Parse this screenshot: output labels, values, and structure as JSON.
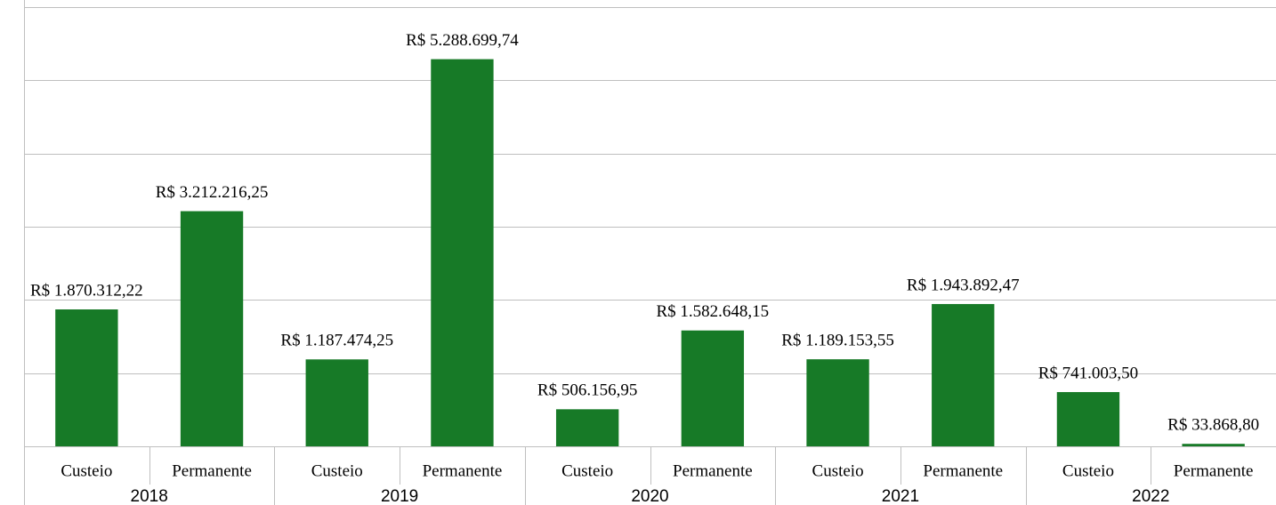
{
  "chart_data": {
    "type": "bar",
    "categories": [
      "Custeio",
      "Permanente",
      "Custeio",
      "Permanente",
      "Custeio",
      "Permanente",
      "Custeio",
      "Permanente",
      "Custeio",
      "Permanente"
    ],
    "groups": [
      "2018",
      "2019",
      "2020",
      "2021",
      "2022"
    ],
    "values": [
      1870312.22,
      3212216.25,
      1187474.25,
      5288699.74,
      506156.95,
      1582648.15,
      1189153.55,
      1943892.47,
      741003.5,
      33868.8
    ],
    "value_labels": [
      "R$ 1.870.312,22",
      "R$ 3.212.216,25",
      "R$ 1.187.474,25",
      "R$ 5.288.699,74",
      "R$ 506.156,95",
      "R$ 1.582.648,15",
      "R$ 1.189.153,55",
      "R$ 1.943.892,47",
      "R$ 741.003,50",
      "R$ 33.868,80"
    ],
    "color": "#177a27",
    "ylim": [
      0,
      6000000
    ],
    "yticks": [
      0,
      1000000,
      2000000,
      3000000,
      4000000,
      5000000,
      6000000
    ],
    "grid": true
  }
}
